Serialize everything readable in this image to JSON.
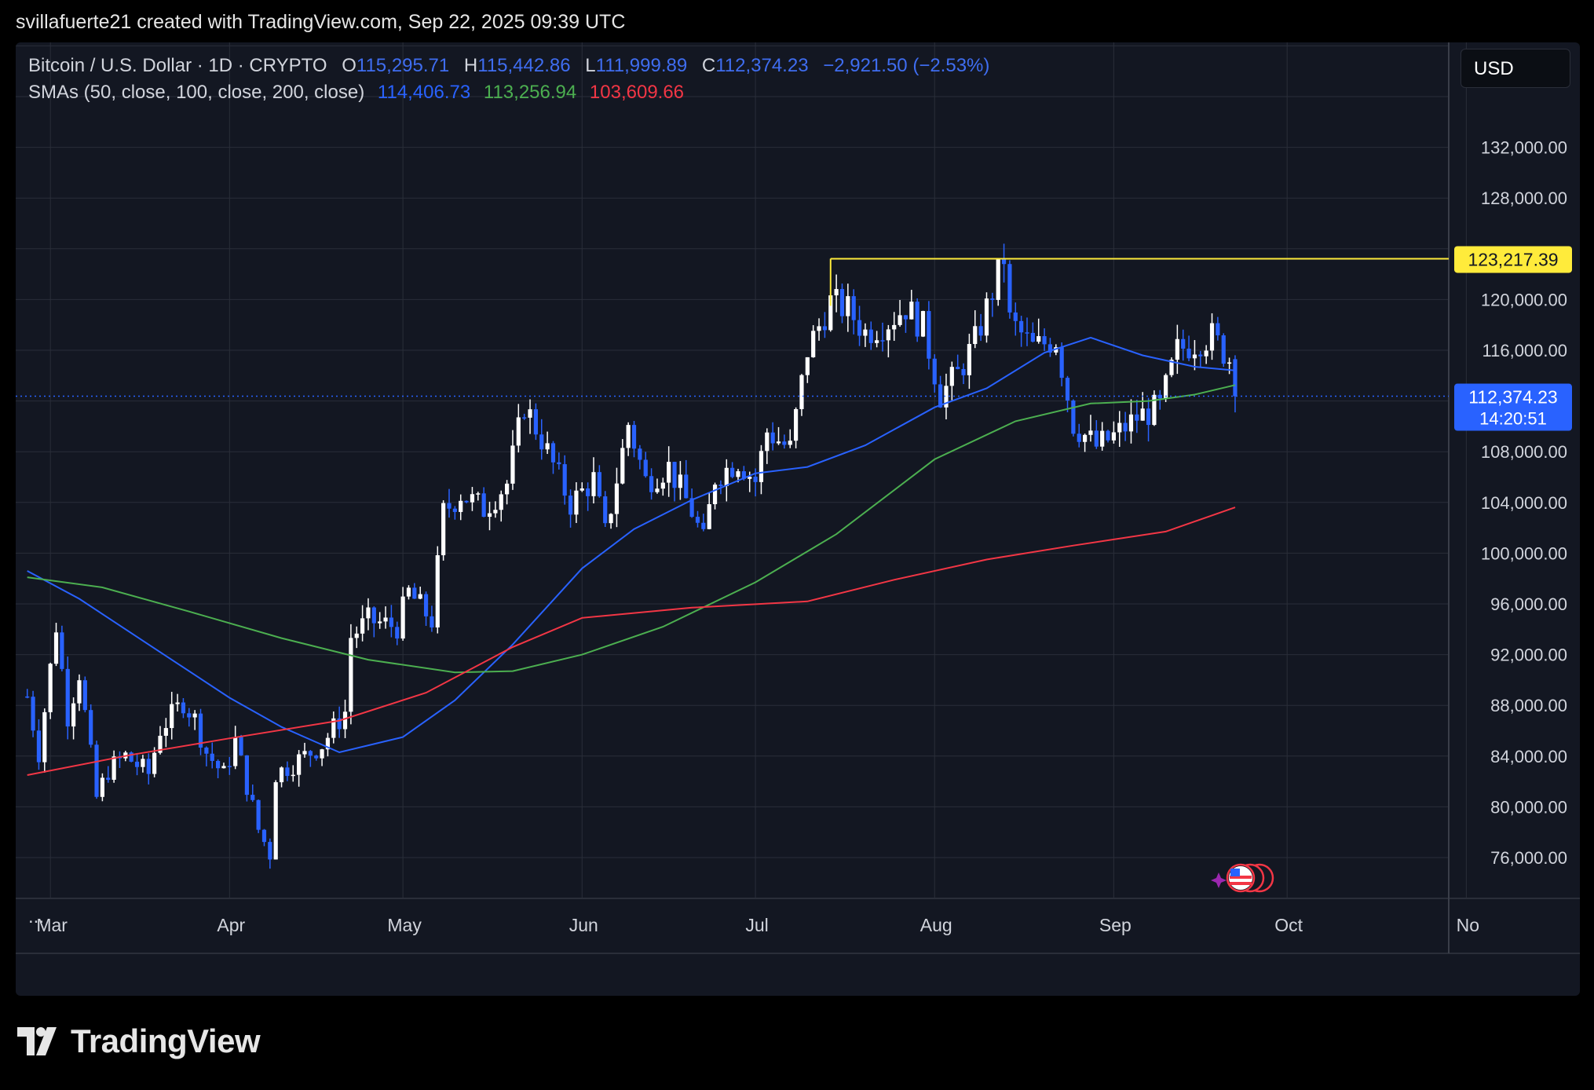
{
  "header": {
    "text": "svillafuerte21 created with TradingView.com, Sep 22, 2025 09:39 UTC"
  },
  "legend": {
    "title": "Bitcoin / U.S. Dollar · 1D · CRYPTO",
    "o_label": "O",
    "o": "115,295.71",
    "h_label": "H",
    "h": "115,442.86",
    "l_label": "L",
    "l": "111,999.89",
    "c_label": "C",
    "c": "112,374.23",
    "change": "−2,921.50 (−2.53%)",
    "sma_label": "SMAs (50, close, 100, close, 200, close)",
    "sma50": "114,406.73",
    "sma100": "113,256.94",
    "sma200": "103,609.66"
  },
  "currency_button": "USD",
  "more_label": "...",
  "logo_text": "TradingView",
  "colors": {
    "background": "#131722",
    "grid": "#2a2e39",
    "up_candle": "#ffffff",
    "down_candle": "#2962ff",
    "sma50": "#2962ff",
    "sma100": "#4caf50",
    "sma200": "#f23645",
    "resistance": "#ffeb3b"
  },
  "chart_data": {
    "type": "candlestick",
    "title": "Bitcoin / U.S. Dollar · 1D · CRYPTO",
    "x_axis_labels": [
      "Mar",
      "Apr",
      "May",
      "Jun",
      "Jul",
      "Aug",
      "Sep",
      "Oct",
      "No"
    ],
    "y_axis_ticks": [
      "76,000.00",
      "80,000.00",
      "84,000.00",
      "88,000.00",
      "92,000.00",
      "96,000.00",
      "100,000.00",
      "104,000.00",
      "108,000.00",
      "116,000.00",
      "120,000.00",
      "128,000.00",
      "132,000.00"
    ],
    "ylim": [
      71000,
      138500
    ],
    "date_range": [
      "2025-02-25",
      "2025-09-22"
    ],
    "grid": true,
    "resistance_line": {
      "value": 123217.39,
      "label": "123,217.39",
      "start_date": "2025-07-14"
    },
    "current_price": {
      "value": 112374.23,
      "label": "112,374.23",
      "countdown": "14:20:51"
    },
    "series_close_path": [
      {
        "date": "2025-02-25",
        "close": 88700
      },
      {
        "date": "2025-02-27",
        "close": 84300
      },
      {
        "date": "2025-03-02",
        "close": 94300
      },
      {
        "date": "2025-03-04",
        "close": 87200
      },
      {
        "date": "2025-03-06",
        "close": 90600
      },
      {
        "date": "2025-03-09",
        "close": 80700
      },
      {
        "date": "2025-03-11",
        "close": 82900
      },
      {
        "date": "2025-03-14",
        "close": 84000
      },
      {
        "date": "2025-03-18",
        "close": 82600
      },
      {
        "date": "2025-03-20",
        "close": 86100
      },
      {
        "date": "2025-03-24",
        "close": 88300
      },
      {
        "date": "2025-03-26",
        "close": 86900
      },
      {
        "date": "2025-03-28",
        "close": 84300
      },
      {
        "date": "2025-03-31",
        "close": 82500
      },
      {
        "date": "2025-04-02",
        "close": 85200
      },
      {
        "date": "2025-04-06",
        "close": 78200
      },
      {
        "date": "2025-04-08",
        "close": 76300
      },
      {
        "date": "2025-04-09",
        "close": 82600
      },
      {
        "date": "2025-04-13",
        "close": 83700
      },
      {
        "date": "2025-04-17",
        "close": 84900
      },
      {
        "date": "2025-04-21",
        "close": 87500
      },
      {
        "date": "2025-04-22",
        "close": 93400
      },
      {
        "date": "2025-04-25",
        "close": 94700
      },
      {
        "date": "2025-04-30",
        "close": 94200
      },
      {
        "date": "2025-05-02",
        "close": 96900
      },
      {
        "date": "2025-05-06",
        "close": 94700
      },
      {
        "date": "2025-05-08",
        "close": 103200
      },
      {
        "date": "2025-05-11",
        "close": 104700
      },
      {
        "date": "2025-05-15",
        "close": 103500
      },
      {
        "date": "2025-05-19",
        "close": 105500
      },
      {
        "date": "2025-05-22",
        "close": 111700
      },
      {
        "date": "2025-05-25",
        "close": 109000
      },
      {
        "date": "2025-05-30",
        "close": 103900
      },
      {
        "date": "2025-06-03",
        "close": 105800
      },
      {
        "date": "2025-06-05",
        "close": 101500
      },
      {
        "date": "2025-06-09",
        "close": 110200
      },
      {
        "date": "2025-06-12",
        "close": 105700
      },
      {
        "date": "2025-06-16",
        "close": 106800
      },
      {
        "date": "2025-06-20",
        "close": 103300
      },
      {
        "date": "2025-06-22",
        "close": 100900
      },
      {
        "date": "2025-06-24",
        "close": 106000
      },
      {
        "date": "2025-06-28",
        "close": 107300
      },
      {
        "date": "2025-07-01",
        "close": 105700
      },
      {
        "date": "2025-07-03",
        "close": 109600
      },
      {
        "date": "2025-07-07",
        "close": 108200
      },
      {
        "date": "2025-07-10",
        "close": 116000
      },
      {
        "date": "2025-07-14",
        "close": 119800
      },
      {
        "date": "2025-07-17",
        "close": 119200
      },
      {
        "date": "2025-07-20",
        "close": 117400
      },
      {
        "date": "2025-07-24",
        "close": 118300
      },
      {
        "date": "2025-07-27",
        "close": 119400
      },
      {
        "date": "2025-07-30",
        "close": 117800
      },
      {
        "date": "2025-08-02",
        "close": 112500
      },
      {
        "date": "2025-08-05",
        "close": 114100
      },
      {
        "date": "2025-08-08",
        "close": 116700
      },
      {
        "date": "2025-08-10",
        "close": 119300
      },
      {
        "date": "2025-08-13",
        "close": 123300
      },
      {
        "date": "2025-08-14",
        "close": 118300
      },
      {
        "date": "2025-08-18",
        "close": 116200
      },
      {
        "date": "2025-08-22",
        "close": 116900
      },
      {
        "date": "2025-08-25",
        "close": 110200
      },
      {
        "date": "2025-08-29",
        "close": 108400
      },
      {
        "date": "2025-09-01",
        "close": 109200
      },
      {
        "date": "2025-09-05",
        "close": 110700
      },
      {
        "date": "2025-09-09",
        "close": 111500
      },
      {
        "date": "2025-09-12",
        "close": 116000
      },
      {
        "date": "2025-09-16",
        "close": 116800
      },
      {
        "date": "2025-09-18",
        "close": 117100
      },
      {
        "date": "2025-09-21",
        "close": 115300
      },
      {
        "date": "2025-09-22",
        "close": 112374
      }
    ],
    "series": [
      {
        "name": "SMA 50",
        "last": "114,406.73",
        "points": [
          {
            "date": "2025-02-25",
            "value": 98600
          },
          {
            "date": "2025-03-06",
            "value": 96400
          },
          {
            "date": "2025-03-20",
            "value": 92200
          },
          {
            "date": "2025-04-01",
            "value": 88600
          },
          {
            "date": "2025-04-10",
            "value": 86300
          },
          {
            "date": "2025-04-20",
            "value": 84300
          },
          {
            "date": "2025-05-01",
            "value": 85500
          },
          {
            "date": "2025-05-10",
            "value": 88400
          },
          {
            "date": "2025-05-20",
            "value": 92800
          },
          {
            "date": "2025-06-01",
            "value": 98800
          },
          {
            "date": "2025-06-10",
            "value": 101900
          },
          {
            "date": "2025-06-20",
            "value": 104200
          },
          {
            "date": "2025-07-01",
            "value": 106300
          },
          {
            "date": "2025-07-10",
            "value": 106800
          },
          {
            "date": "2025-07-20",
            "value": 108500
          },
          {
            "date": "2025-08-01",
            "value": 111500
          },
          {
            "date": "2025-08-10",
            "value": 113000
          },
          {
            "date": "2025-08-20",
            "value": 115800
          },
          {
            "date": "2025-08-28",
            "value": 117000
          },
          {
            "date": "2025-09-06",
            "value": 115600
          },
          {
            "date": "2025-09-15",
            "value": 114700
          },
          {
            "date": "2025-09-22",
            "value": 114407
          }
        ]
      },
      {
        "name": "SMA 100",
        "last": "113,256.94",
        "points": [
          {
            "date": "2025-02-25",
            "value": 98100
          },
          {
            "date": "2025-03-10",
            "value": 97300
          },
          {
            "date": "2025-03-25",
            "value": 95400
          },
          {
            "date": "2025-04-10",
            "value": 93300
          },
          {
            "date": "2025-04-25",
            "value": 91600
          },
          {
            "date": "2025-05-10",
            "value": 90600
          },
          {
            "date": "2025-05-20",
            "value": 90700
          },
          {
            "date": "2025-06-01",
            "value": 92000
          },
          {
            "date": "2025-06-15",
            "value": 94200
          },
          {
            "date": "2025-07-01",
            "value": 97700
          },
          {
            "date": "2025-07-15",
            "value": 101500
          },
          {
            "date": "2025-08-01",
            "value": 107400
          },
          {
            "date": "2025-08-15",
            "value": 110400
          },
          {
            "date": "2025-08-28",
            "value": 111800
          },
          {
            "date": "2025-09-07",
            "value": 112000
          },
          {
            "date": "2025-09-15",
            "value": 112500
          },
          {
            "date": "2025-09-22",
            "value": 113257
          }
        ]
      },
      {
        "name": "SMA 200",
        "last": "103,609.66",
        "points": [
          {
            "date": "2025-02-25",
            "value": 82500
          },
          {
            "date": "2025-03-15",
            "value": 84100
          },
          {
            "date": "2025-04-01",
            "value": 85400
          },
          {
            "date": "2025-04-20",
            "value": 86800
          },
          {
            "date": "2025-05-05",
            "value": 89000
          },
          {
            "date": "2025-05-20",
            "value": 92600
          },
          {
            "date": "2025-06-01",
            "value": 94900
          },
          {
            "date": "2025-06-20",
            "value": 95700
          },
          {
            "date": "2025-07-10",
            "value": 96200
          },
          {
            "date": "2025-07-25",
            "value": 97900
          },
          {
            "date": "2025-08-10",
            "value": 99500
          },
          {
            "date": "2025-08-25",
            "value": 100600
          },
          {
            "date": "2025-09-10",
            "value": 101700
          },
          {
            "date": "2025-09-22",
            "value": 103610
          }
        ]
      }
    ]
  }
}
